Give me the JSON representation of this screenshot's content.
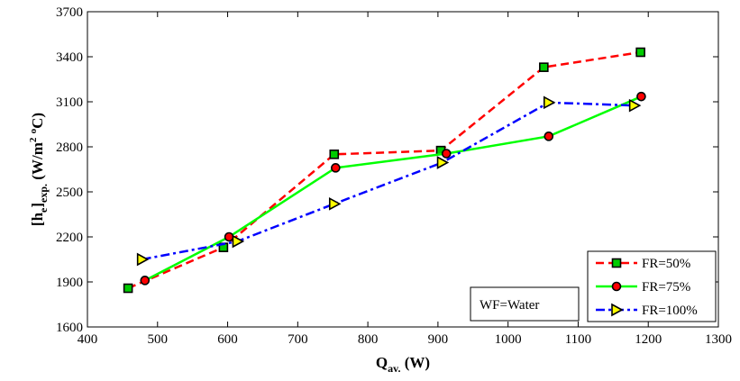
{
  "chart_data": {
    "type": "line",
    "xlim": [
      400,
      1300
    ],
    "ylim": [
      1600,
      3700
    ],
    "x_ticks": [
      400,
      500,
      600,
      700,
      800,
      900,
      1000,
      1100,
      1200,
      1300
    ],
    "y_ticks": [
      1600,
      1900,
      2200,
      2500,
      2800,
      3100,
      3400,
      3700
    ],
    "xlabel": {
      "main": "Q",
      "sub": "av.",
      "unit": " (W)"
    },
    "ylabel": {
      "pre": "[h",
      "sub": "e",
      "mid": "]",
      "sub2": "exp.",
      "unit": " (W/m",
      "sup": "2",
      "unit2": " ",
      "sup2": "o",
      "unit3": "C)"
    },
    "grid": false,
    "legend_position": "bottom-right",
    "annotation": "WF=Water",
    "series": [
      {
        "name": "FR=50%",
        "color": "#ff0000",
        "marker": "square",
        "marker_fill": "#00cc00",
        "dash": "dashed",
        "x": [
          458,
          594,
          752,
          904,
          1051,
          1189
        ],
        "y": [
          1858,
          2130,
          2750,
          2775,
          3330,
          3430
        ]
      },
      {
        "name": "FR=75%",
        "color": "#00ff00",
        "marker": "circle",
        "marker_fill": "#ff0000",
        "dash": "solid",
        "x": [
          482,
          602,
          754,
          912,
          1058,
          1190
        ],
        "y": [
          1910,
          2200,
          2660,
          2755,
          2870,
          3135
        ]
      },
      {
        "name": "FR=100%",
        "color": "#0000ff",
        "marker": "triangle-right",
        "marker_fill": "#ffff00",
        "dash": "dashdot",
        "x": [
          478,
          614,
          752,
          906,
          1058,
          1180
        ],
        "y": [
          2050,
          2170,
          2420,
          2695,
          3095,
          3075
        ]
      }
    ]
  }
}
